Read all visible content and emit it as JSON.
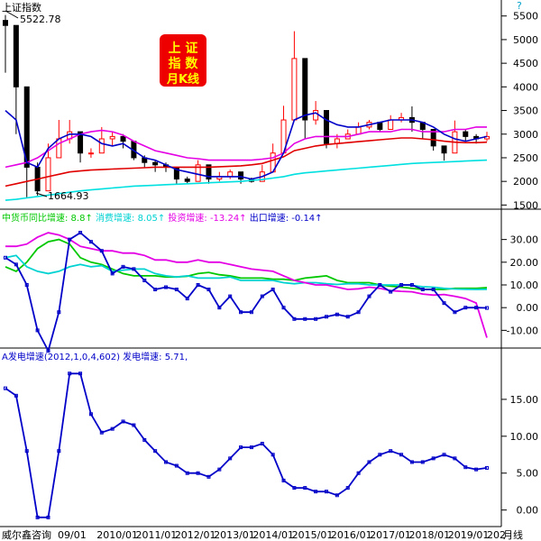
{
  "header": {
    "title": "上证指数",
    "peak_label": "5522.78",
    "trough_label": "1664.93",
    "help_icon": "?",
    "badge_lines": [
      "上 证",
      "指 数",
      "月K线"
    ]
  },
  "legend_mid": [
    {
      "text": "中货币同比增速: 8.8↑",
      "color": "#00c800"
    },
    {
      "text": "消费增速: 8.05↑",
      "color": "#00d2d2"
    },
    {
      "text": "投资增速: -13.24↑",
      "color": "#e400e4"
    },
    {
      "text": "出口增速: -0.14↑",
      "color": "#0000c8"
    }
  ],
  "legend_bot": [
    {
      "text": "A发电增速(2012,1,0,4,602)",
      "color": "#0000c8"
    },
    {
      "text": "发电增速: 5.71,",
      "color": "#0000c8"
    }
  ],
  "footer": {
    "brand": "威尔鑫咨询",
    "x_labels": [
      "09/01",
      "2010/01",
      "2011/01",
      "2012/01",
      "2013/01",
      "2014/01",
      "2015/01",
      "2016/01",
      "2017/01",
      "2018/01",
      "2019/01",
      "202"
    ],
    "period": "月线"
  },
  "colors": {
    "up": "#ff0000",
    "down": "#000000",
    "ma_blue": "#0000c8",
    "ma_magenta": "#e400e4",
    "ma_red": "#e00000",
    "ma_cyan": "#00e0e0",
    "green": "#00c800",
    "cyan2": "#00d2d2",
    "axis": "#000000"
  },
  "chart_data": [
    {
      "type": "candlestick",
      "title": "上证指数",
      "subtitle": "月K线",
      "x": [
        "2008-08",
        "2008-11",
        "2009-02",
        "2009-05",
        "2009-08",
        "2009-11",
        "2010-02",
        "2010-05",
        "2010-08",
        "2010-11",
        "2011-02",
        "2011-05",
        "2011-08",
        "2011-11",
        "2012-02",
        "2012-05",
        "2012-08",
        "2012-11",
        "2013-02",
        "2013-05",
        "2013-08",
        "2013-11",
        "2014-02",
        "2014-05",
        "2014-08",
        "2014-11",
        "2015-02",
        "2015-05",
        "2015-08",
        "2015-11",
        "2016-02",
        "2016-05",
        "2016-08",
        "2016-11",
        "2017-02",
        "2017-05",
        "2017-08",
        "2017-11",
        "2018-02",
        "2018-05",
        "2018-08",
        "2018-11",
        "2019-02",
        "2019-05",
        "2019-08",
        "2019-11"
      ],
      "close": [
        5300,
        4000,
        2300,
        1800,
        2500,
        2900,
        3050,
        2600,
        2600,
        2900,
        2950,
        2850,
        2500,
        2400,
        2350,
        2300,
        2050,
        2000,
        2350,
        2050,
        2100,
        2200,
        2050,
        2000,
        2200,
        2600,
        3300,
        4600,
        3300,
        3500,
        2800,
        2900,
        3000,
        3150,
        3250,
        3100,
        3300,
        3350,
        3250,
        3100,
        2750,
        2600,
        3050,
        2950,
        2900,
        2950
      ],
      "high": [
        5522,
        4400,
        2600,
        2400,
        2800,
        3300,
        3300,
        3050,
        2700,
        3150,
        3050,
        3000,
        2850,
        2550,
        2450,
        2400,
        2200,
        2100,
        2450,
        2300,
        2200,
        2250,
        2150,
        2080,
        2350,
        2800,
        3600,
        5178,
        4200,
        3700,
        3400,
        3000,
        3100,
        3250,
        3300,
        3250,
        3400,
        3450,
        3587,
        3200,
        2950,
        2700,
        3288,
        3100,
        3000,
        3050
      ],
      "low": [
        4300,
        3000,
        1664,
        1700,
        1800,
        2700,
        2800,
        2400,
        2500,
        2600,
        2750,
        2700,
        2450,
        2300,
        2200,
        2200,
        1950,
        1950,
        2100,
        1950,
        2000,
        2050,
        1950,
        1974,
        2050,
        2350,
        3050,
        4000,
        2900,
        3200,
        2700,
        2700,
        2900,
        3000,
        3100,
        3050,
        3200,
        3250,
        3050,
        2900,
        2650,
        2440,
        2800,
        2850,
        2800,
        2850
      ],
      "ma_blue": [
        3500,
        3300,
        2400,
        2300,
        2700,
        2900,
        3000,
        3000,
        2950,
        2800,
        2750,
        2800,
        2650,
        2500,
        2450,
        2350,
        2250,
        2200,
        2150,
        2100,
        2100,
        2100,
        2100,
        2050,
        2100,
        2200,
        2600,
        3300,
        3400,
        3450,
        3300,
        3200,
        3150,
        3150,
        3200,
        3250,
        3300,
        3300,
        3300,
        3250,
        3150,
        3000,
        2900,
        2850,
        2900,
        2950
      ],
      "ma_magenta": [
        2300,
        2350,
        2400,
        2500,
        2650,
        2800,
        2900,
        3000,
        3050,
        3080,
        3050,
        2980,
        2850,
        2750,
        2650,
        2600,
        2550,
        2500,
        2480,
        2450,
        2450,
        2450,
        2450,
        2450,
        2470,
        2500,
        2600,
        2800,
        2900,
        2950,
        2950,
        2950,
        2950,
        3000,
        3050,
        3050,
        3050,
        3100,
        3100,
        3050,
        3050,
        3050,
        3100,
        3100,
        3150,
        3150
      ],
      "ma_red": [
        1900,
        1950,
        2000,
        2050,
        2100,
        2150,
        2200,
        2220,
        2240,
        2250,
        2260,
        2270,
        2280,
        2290,
        2300,
        2300,
        2300,
        2300,
        2300,
        2300,
        2310,
        2320,
        2330,
        2350,
        2380,
        2450,
        2520,
        2650,
        2700,
        2750,
        2780,
        2800,
        2820,
        2840,
        2860,
        2880,
        2900,
        2920,
        2920,
        2900,
        2880,
        2850,
        2830,
        2820,
        2820,
        2830
      ],
      "ma_cyan": [
        1600,
        1620,
        1650,
        1680,
        1710,
        1740,
        1770,
        1800,
        1820,
        1840,
        1860,
        1880,
        1900,
        1910,
        1920,
        1930,
        1940,
        1950,
        1960,
        1970,
        1980,
        1990,
        2000,
        2020,
        2040,
        2070,
        2100,
        2150,
        2180,
        2200,
        2220,
        2240,
        2260,
        2280,
        2300,
        2320,
        2340,
        2360,
        2380,
        2390,
        2400,
        2410,
        2420,
        2430,
        2440,
        2450
      ],
      "yticks": [
        1500,
        2000,
        2500,
        3000,
        3500,
        4000,
        4500,
        5000,
        5500
      ],
      "ylim": [
        1450,
        5800
      ]
    },
    {
      "type": "line",
      "x": [
        "2008-08",
        "2008-11",
        "2009-02",
        "2009-05",
        "2009-08",
        "2009-11",
        "2010-02",
        "2010-05",
        "2010-08",
        "2010-11",
        "2011-02",
        "2011-05",
        "2011-08",
        "2011-11",
        "2012-02",
        "2012-05",
        "2012-08",
        "2012-11",
        "2013-02",
        "2013-05",
        "2013-08",
        "2013-11",
        "2014-02",
        "2014-05",
        "2014-08",
        "2014-11",
        "2015-02",
        "2015-05",
        "2015-08",
        "2015-11",
        "2016-02",
        "2016-05",
        "2016-08",
        "2016-11",
        "2017-02",
        "2017-05",
        "2017-08",
        "2017-11",
        "2018-02",
        "2018-05",
        "2018-08",
        "2018-11",
        "2019-02",
        "2019-05",
        "2019-08",
        "2019-11"
      ],
      "series": [
        {
          "name": "中货币同比增速",
          "color": "#00c800",
          "values": [
            18,
            16,
            20,
            26,
            29,
            30,
            28,
            22,
            20,
            19,
            17,
            15,
            14,
            14,
            14,
            13.5,
            13.5,
            13.8,
            15,
            15.5,
            14.5,
            14,
            13,
            13,
            13,
            12.5,
            12.5,
            12,
            13,
            13.5,
            14,
            12,
            11,
            11,
            11,
            10,
            9.5,
            9,
            8.5,
            8,
            8,
            8,
            8.5,
            8.5,
            8.5,
            8.8
          ]
        },
        {
          "name": "消费增速",
          "color": "#00d2d2",
          "values": [
            22,
            23,
            18,
            16,
            15,
            16,
            18,
            19,
            18,
            18.5,
            16,
            16.5,
            17,
            17,
            15,
            14,
            13.5,
            14,
            13,
            13,
            13,
            13.5,
            12,
            12,
            12,
            12,
            11,
            10.5,
            11,
            11,
            10.5,
            10.2,
            10.5,
            10.5,
            10,
            10,
            10,
            10,
            9.8,
            9.2,
            9,
            8.5,
            8.2,
            8.1,
            8,
            8.05
          ]
        },
        {
          "name": "投资增速",
          "color": "#e400e4",
          "values": [
            27,
            27,
            28,
            31,
            33,
            32,
            30,
            27,
            26,
            25,
            25,
            24,
            24,
            23,
            21,
            21,
            20,
            20,
            21,
            20,
            20,
            19,
            18,
            17,
            16.5,
            16,
            14,
            12,
            11,
            10,
            10,
            9,
            8,
            8.3,
            9,
            8.5,
            7.5,
            7.2,
            7,
            6,
            5.5,
            5.8,
            5,
            4,
            2,
            -13.24
          ]
        },
        {
          "name": "出口增速",
          "color": "#0000c8",
          "values": [
            22,
            19,
            10,
            -10,
            -19,
            -2,
            30,
            33,
            29,
            25,
            15,
            18,
            17,
            12,
            8,
            9,
            8,
            4,
            10,
            8,
            0,
            5,
            -2,
            -2,
            5,
            8,
            0,
            -5,
            -5,
            -5,
            -4,
            -3,
            -4,
            -2,
            5,
            10,
            7,
            10,
            10,
            8,
            8,
            2,
            -2,
            0,
            0,
            -0.14
          ]
        }
      ],
      "yticks": [
        -10,
        0,
        10,
        20,
        30
      ],
      "ylim": [
        -17,
        37
      ]
    },
    {
      "type": "line",
      "x": [
        "2008-08",
        "2008-11",
        "2009-02",
        "2009-05",
        "2009-08",
        "2009-11",
        "2010-02",
        "2010-05",
        "2010-08",
        "2010-11",
        "2011-02",
        "2011-05",
        "2011-08",
        "2011-11",
        "2012-02",
        "2012-05",
        "2012-08",
        "2012-11",
        "2013-02",
        "2013-05",
        "2013-08",
        "2013-11",
        "2014-02",
        "2014-05",
        "2014-08",
        "2014-11",
        "2015-02",
        "2015-05",
        "2015-08",
        "2015-11",
        "2016-02",
        "2016-05",
        "2016-08",
        "2016-11",
        "2017-02",
        "2017-05",
        "2017-08",
        "2017-11",
        "2018-02",
        "2018-05",
        "2018-08",
        "2018-11",
        "2019-02",
        "2019-05",
        "2019-08",
        "2019-11"
      ],
      "series": [
        {
          "name": "发电增速",
          "color": "#0000c8",
          "values": [
            16.5,
            15.5,
            8,
            -1,
            -1,
            8,
            18.5,
            18.5,
            13,
            10.5,
            11,
            12,
            11.5,
            9.5,
            8,
            6.5,
            6,
            5,
            5,
            4.5,
            5.5,
            7,
            8.5,
            8.5,
            9,
            7.5,
            4,
            3,
            3,
            2.5,
            2.5,
            2,
            3,
            5,
            6.5,
            7.5,
            8,
            7.5,
            6.5,
            6.5,
            7,
            7.5,
            7,
            5.8,
            5.5,
            5.71
          ]
        }
      ],
      "yticks": [
        0,
        5,
        10,
        15
      ],
      "ylim": [
        -2,
        20
      ]
    }
  ]
}
